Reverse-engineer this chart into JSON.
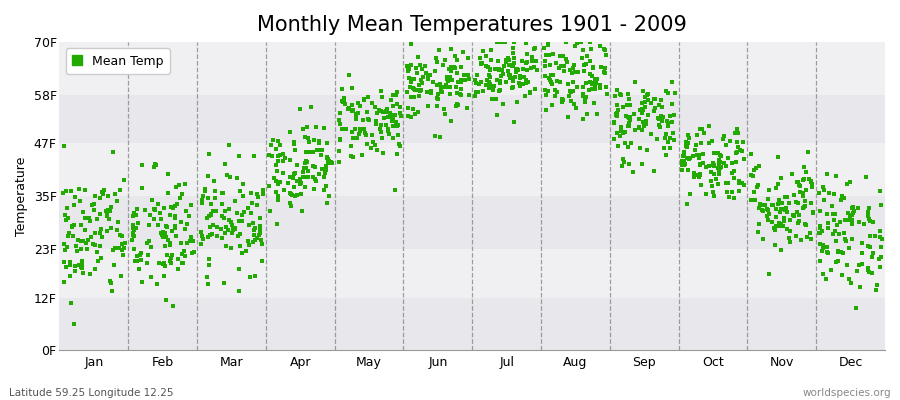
{
  "title": "Monthly Mean Temperatures 1901 - 2009",
  "ylabel": "Temperature",
  "xlabel_labels": [
    "Jan",
    "Feb",
    "Mar",
    "Apr",
    "May",
    "Jun",
    "Jul",
    "Aug",
    "Sep",
    "Oct",
    "Nov",
    "Dec"
  ],
  "ytick_labels": [
    "0F",
    "12F",
    "23F",
    "35F",
    "47F",
    "58F",
    "70F"
  ],
  "ytick_values": [
    0,
    12,
    23,
    35,
    47,
    58,
    70
  ],
  "ylim": [
    0,
    70
  ],
  "dot_color": "#22aa00",
  "dot_size": 5,
  "band_colors": [
    "#e8e8ec",
    "#f2f2f4",
    "#e8e8ec",
    "#f2f2f4",
    "#e8e8ec",
    "#f2f2f4"
  ],
  "legend_label": "Mean Temp",
  "subtitle_left": "Latitude 59.25 Longitude 12.25",
  "subtitle_right": "worldspecies.org",
  "title_fontsize": 15,
  "label_fontsize": 9,
  "years": 109,
  "monthly_means_fahrenheit": [
    26.0,
    26.0,
    30.0,
    42.0,
    52.0,
    60.0,
    63.5,
    61.5,
    52.0,
    43.0,
    33.0,
    26.5
  ],
  "monthly_stds_fahrenheit": [
    7.5,
    7.5,
    6.0,
    5.0,
    4.5,
    4.0,
    4.0,
    4.5,
    5.0,
    4.5,
    5.5,
    6.5
  ],
  "seed": 42,
  "vline_color": "#666666",
  "vline_alpha": 0.6
}
